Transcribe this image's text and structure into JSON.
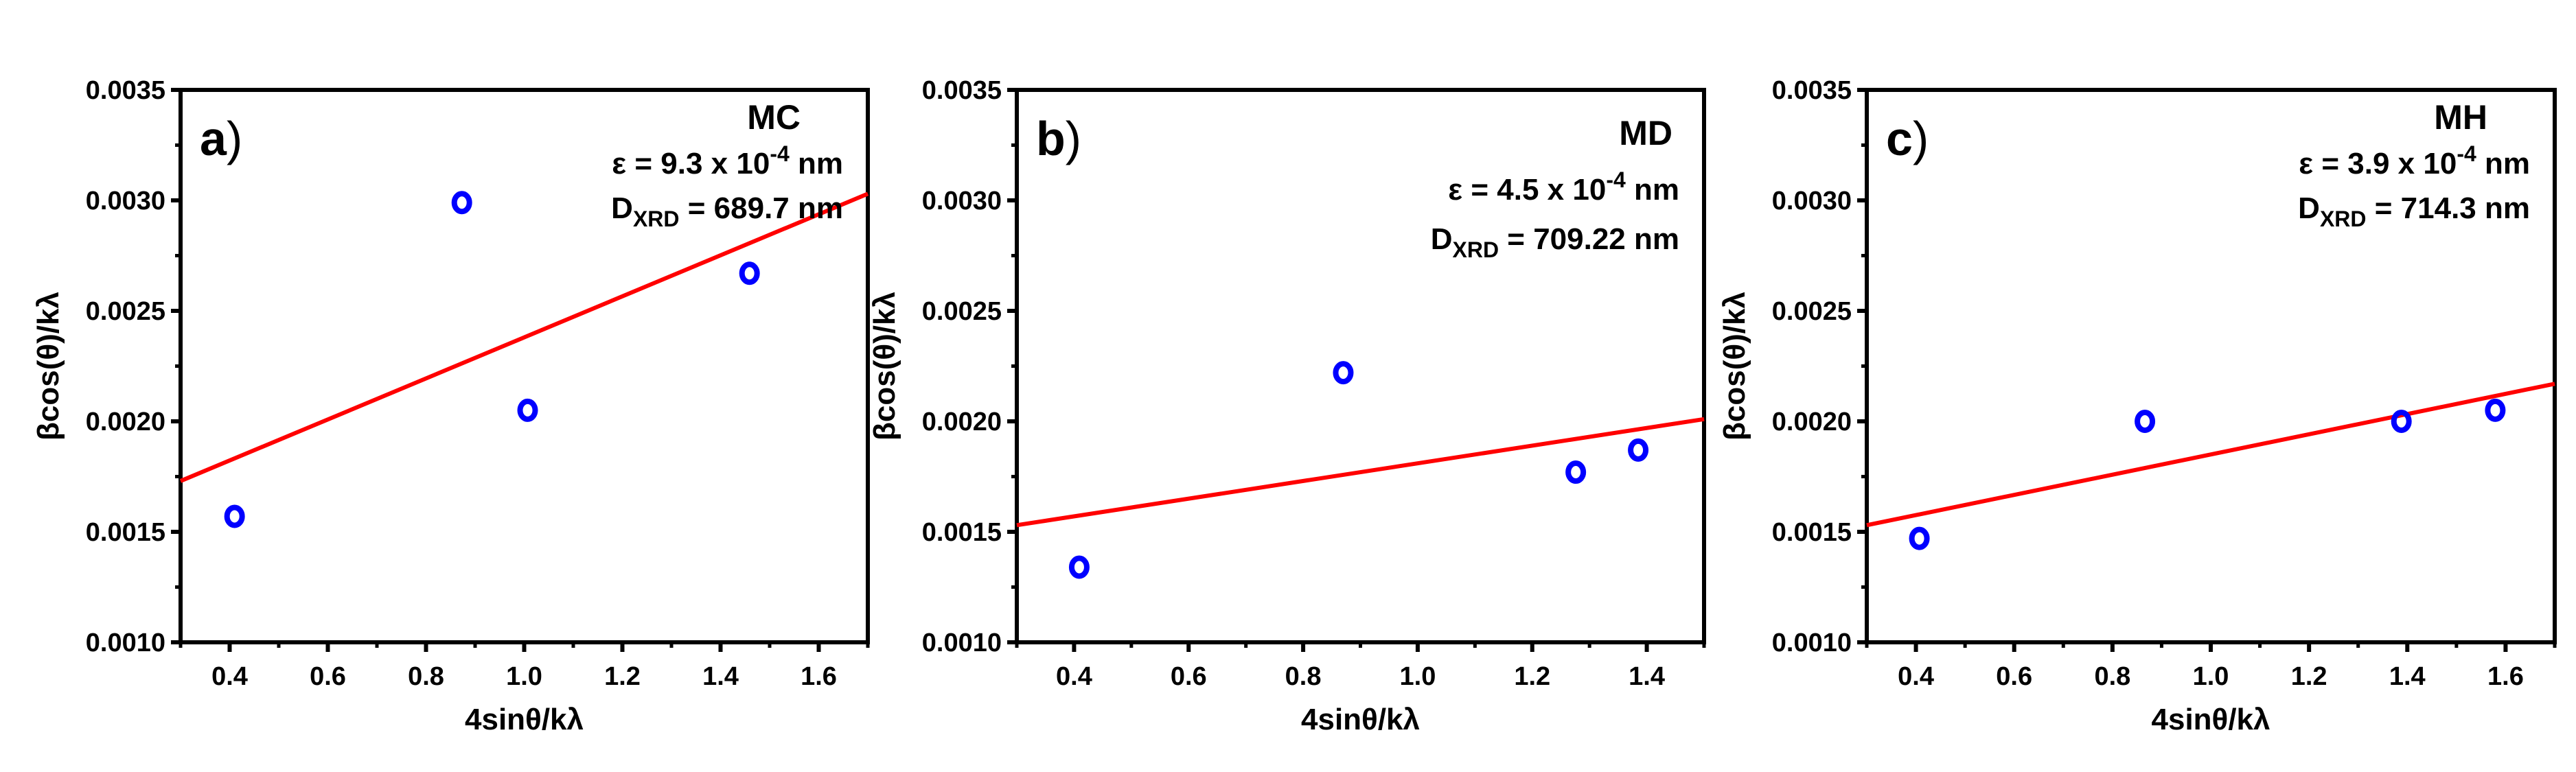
{
  "chart_data": [
    {
      "type": "scatter",
      "panel_label": "a",
      "sample": "MC",
      "annotations": {
        "strain_prefix": "ε = 9.3 x 10",
        "strain_exp": "-4",
        "strain_unit": " nm",
        "size_main": "D",
        "size_sub": "XRD",
        "size_value": " = 689.7 nm"
      },
      "xlabel": "4sinθ/kλ",
      "ylabel": "βcos(θ)/kλ",
      "xlim": [
        0.3,
        1.7
      ],
      "ylim": [
        0.001,
        0.0035
      ],
      "xticks": [
        0.4,
        0.6,
        0.8,
        1.0,
        1.2,
        1.4,
        1.6
      ],
      "xtick_labels": [
        "0.4",
        "0.6",
        "0.8",
        "1.0",
        "1.2",
        "1.4",
        "1.6"
      ],
      "yticks": [
        0.001,
        0.0015,
        0.002,
        0.0025,
        0.003,
        0.0035
      ],
      "ytick_labels": [
        "0.0010",
        "0.0015",
        "0.0020",
        "0.0025",
        "0.0030",
        "0.0035"
      ],
      "series": [
        {
          "name": "data",
          "marker": "open-circle",
          "color": "#0000ff",
          "x": [
            0.41,
            0.873,
            1.007,
            1.459
          ],
          "y": [
            0.00157,
            0.00299,
            0.00205,
            0.00267
          ]
        },
        {
          "name": "linear fit",
          "style": "line",
          "color": "#ff0000",
          "x": [
            0.3,
            1.7
          ],
          "y": [
            0.00173,
            0.00303
          ]
        }
      ]
    },
    {
      "type": "scatter",
      "panel_label": "b",
      "sample": "MD",
      "annotations": {
        "strain_prefix": "ε = 4.5 x 10",
        "strain_exp": "-4",
        "strain_unit": " nm",
        "size_main": "D",
        "size_sub": "XRD",
        "size_value": " = 709.22 nm"
      },
      "xlabel": "4sinθ/kλ",
      "ylabel": "βcos(θ)/kλ",
      "xlim": [
        0.3,
        1.5
      ],
      "ylim": [
        0.001,
        0.0035
      ],
      "xticks": [
        0.4,
        0.6,
        0.8,
        1.0,
        1.2,
        1.4
      ],
      "xtick_labels": [
        "0.4",
        "0.6",
        "0.8",
        "1.0",
        "1.2",
        "1.4"
      ],
      "yticks": [
        0.001,
        0.0015,
        0.002,
        0.0025,
        0.003,
        0.0035
      ],
      "ytick_labels": [
        "0.0010",
        "0.0015",
        "0.0020",
        "0.0025",
        "0.0030",
        "0.0035"
      ],
      "series": [
        {
          "name": "data",
          "marker": "open-circle",
          "color": "#0000ff",
          "x": [
            0.409,
            0.87,
            1.276,
            1.385
          ],
          "y": [
            0.00134,
            0.00222,
            0.00177,
            0.00187
          ]
        },
        {
          "name": "linear fit",
          "style": "line",
          "color": "#ff0000",
          "x": [
            0.3,
            1.5
          ],
          "y": [
            0.00153,
            0.00201
          ]
        }
      ]
    },
    {
      "type": "scatter",
      "panel_label": "c",
      "sample": "MH",
      "annotations": {
        "strain_prefix": "ε = 3.9 x 10",
        "strain_exp": "-4",
        "strain_unit": " nm",
        "size_main": "D",
        "size_sub": "XRD",
        "size_value": " = 714.3 nm"
      },
      "xlabel": "4sinθ/kλ",
      "ylabel": "βcos(θ)/kλ",
      "xlim": [
        0.3,
        1.7
      ],
      "ylim": [
        0.001,
        0.0035
      ],
      "xticks": [
        0.4,
        0.6,
        0.8,
        1.0,
        1.2,
        1.4,
        1.6
      ],
      "xtick_labels": [
        "0.4",
        "0.6",
        "0.8",
        "1.0",
        "1.2",
        "1.4",
        "1.6"
      ],
      "yticks": [
        0.001,
        0.0015,
        0.002,
        0.0025,
        0.003,
        0.0035
      ],
      "ytick_labels": [
        "0.0010",
        "0.0015",
        "0.0020",
        "0.0025",
        "0.0030",
        "0.0035"
      ],
      "series": [
        {
          "name": "data",
          "marker": "open-circle",
          "color": "#0000ff",
          "x": [
            0.407,
            0.866,
            1.388,
            1.579
          ],
          "y": [
            0.00147,
            0.002,
            0.002,
            0.00205
          ]
        },
        {
          "name": "linear fit",
          "style": "line",
          "color": "#ff0000",
          "x": [
            0.3,
            1.7
          ],
          "y": [
            0.00153,
            0.00217
          ]
        }
      ]
    }
  ]
}
